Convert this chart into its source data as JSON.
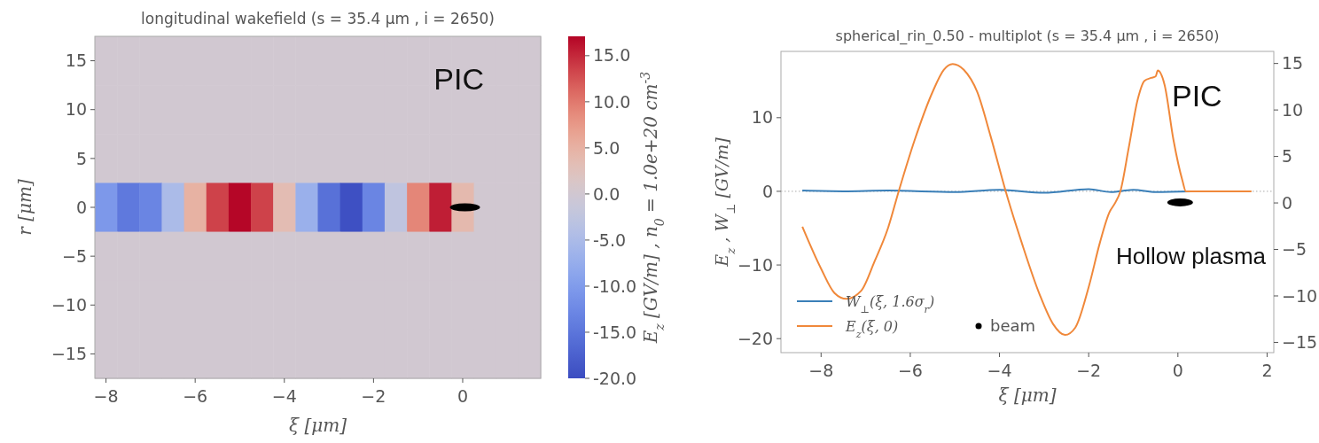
{
  "chart_data": [
    {
      "type": "heatmap",
      "title": "longitudinal wakefield (s = 35.4 μm ,  i = 2650)",
      "xlabel": "ξ [μm]",
      "ylabel": "r [μm]",
      "clabel": "E$_{z}$ [GV/m]  ,  n$_{0}$ = 1.0e+20 cm$^{-3}$",
      "annotations": [
        "PIC"
      ],
      "categories": [
        "−8",
        null,
        null,
        null,
        "−6",
        null,
        null,
        null,
        "−4",
        null,
        null,
        null,
        "−2",
        null,
        null,
        null,
        "0",
        null,
        null,
        null
      ],
      "y_categories": [
        "15",
        "10",
        "5",
        "0",
        "−5",
        "−10",
        "−15"
      ],
      "clim": [
        -20,
        17.1
      ],
      "cticks": [
        {
          "value": -20,
          "label": "-20.0"
        },
        {
          "value": -15,
          "label": "-15.0"
        },
        {
          "value": -10,
          "label": "-10.0"
        },
        {
          "value": -5,
          "label": "-5.0"
        },
        {
          "value": 0,
          "label": "0.0"
        },
        {
          "value": 5,
          "label": "5.0"
        },
        {
          "value": 10,
          "label": "10.0"
        },
        {
          "value": 15,
          "label": "15.0"
        }
      ],
      "cells": [
        [
          0,
          0,
          0,
          0,
          0,
          0,
          0,
          0,
          0,
          0,
          0,
          0,
          0,
          0,
          0,
          0,
          0,
          0,
          0,
          0
        ],
        [
          0,
          0,
          0,
          0,
          0,
          0,
          0,
          0,
          0,
          0,
          0,
          0,
          0,
          0,
          0,
          0,
          0,
          0,
          0,
          0
        ],
        [
          0,
          0,
          0,
          0,
          0,
          0,
          0,
          0,
          0,
          0,
          0,
          0,
          0,
          0,
          0,
          0,
          0,
          0,
          0,
          0
        ],
        [
          -10.5,
          -14.5,
          -13,
          -5,
          5,
          13.5,
          17,
          13.5,
          3.5,
          -7,
          -15.5,
          -19.5,
          -13,
          -2.5,
          9,
          15.6,
          4,
          0,
          0,
          0
        ],
        [
          0,
          0,
          0,
          0,
          0,
          0,
          0,
          0,
          0,
          0,
          0,
          0,
          0,
          0,
          0,
          0,
          0,
          0,
          0,
          0
        ],
        [
          0,
          0,
          0,
          0,
          0,
          0,
          0,
          0,
          0,
          0,
          0,
          0,
          0,
          0,
          0,
          0,
          0,
          0,
          0,
          0
        ],
        [
          0,
          0,
          0,
          0,
          0,
          0,
          0,
          0,
          0,
          0,
          0,
          0,
          0,
          0,
          0,
          0,
          0,
          0,
          0,
          0
        ]
      ]
    },
    {
      "type": "line",
      "title": "spherical_rin_0.50 - multiplot (s = 35.4 μm ,  i = 2650)",
      "xlabel": "ξ [μm]",
      "ylabel": "E$_{z}$ ,  W$_{⊥}$ [GV/m]",
      "annotations": [
        "PIC",
        "Hollow plasma"
      ],
      "xlim": [
        -8.9,
        2.15
      ],
      "xticks": [
        {
          "value": -8,
          "label": "−8"
        },
        {
          "value": -6,
          "label": "−6"
        },
        {
          "value": -4,
          "label": "−4"
        },
        {
          "value": -2,
          "label": "−2"
        },
        0,
        2
      ],
      "ylim": [
        -21.9,
        19
      ],
      "yticks": [
        {
          "value": -20,
          "label": "−20"
        },
        {
          "value": -10,
          "label": "−10"
        },
        0,
        10
      ],
      "y2lim": [
        -16.1,
        16.3
      ],
      "y2ticks": [
        {
          "value": -15,
          "label": "−15"
        },
        {
          "value": -10,
          "label": "−10"
        },
        {
          "value": -5,
          "label": "−5"
        },
        0,
        5,
        10,
        15
      ],
      "ref_lines": [
        {
          "axis": "y",
          "value": 0,
          "color": "#aaaaaa",
          "line_style": "dotted"
        }
      ],
      "legend": "bottom left",
      "grid": false,
      "series": [
        {
          "name": "W$_{⊥}$(ξ, 1.6σ$_{r}$)",
          "color": "#3a7fb8",
          "x": [
            -8.42,
            -7.5,
            -6.5,
            -5,
            -4,
            -3,
            -2,
            -1.5,
            -1,
            -0.5,
            0.3
          ],
          "values": [
            0.1,
            0,
            0.1,
            -0.1,
            0.2,
            -0.2,
            0.3,
            -0.1,
            0.2,
            -0.1,
            0
          ]
        },
        {
          "name": "E$_{z}$(ξ, 0)",
          "color": "#f0883a",
          "x": [
            -8.42,
            -8.0,
            -7.7,
            -7.43,
            -7.1,
            -6.8,
            -6.5,
            -6.26,
            -5.9,
            -5.5,
            -5.25,
            -5.05,
            -4.8,
            -4.5,
            -4.2,
            -3.86,
            -3.5,
            -3.1,
            -2.8,
            -2.53,
            -2.3,
            -2.0,
            -1.75,
            -1.54,
            -1.4,
            -1.29,
            -1.1,
            -0.9,
            -0.75,
            -0.6,
            -0.5,
            -0.45,
            -0.3,
            -0.1,
            0.1,
            0.18,
            1.65
          ],
          "values": [
            -4.8,
            -10.5,
            -13.8,
            -14.6,
            -13.5,
            -9.5,
            -5,
            0,
            7,
            13.5,
            16.5,
            17.3,
            16.5,
            13.5,
            7.5,
            0,
            -7,
            -14,
            -18,
            -19.5,
            -18.5,
            -13,
            -7,
            -2.9,
            -1.5,
            0,
            6,
            12.5,
            15,
            15.4,
            15.6,
            16.4,
            14.5,
            7,
            1.5,
            0,
            0
          ]
        },
        {
          "name": "beam",
          "type": "scatter",
          "marker": "circle",
          "color": "#000000",
          "x": [
            0.05
          ],
          "values": [
            -1.5
          ]
        }
      ]
    }
  ]
}
